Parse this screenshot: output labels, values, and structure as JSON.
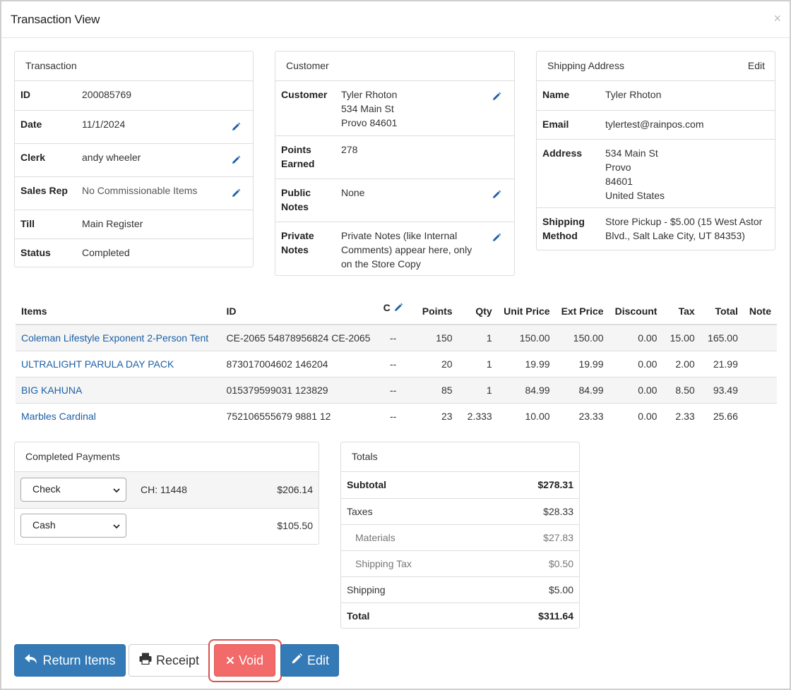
{
  "modal": {
    "title": "Transaction View",
    "close": "×"
  },
  "transaction": {
    "heading": "Transaction",
    "rows": [
      {
        "label": "ID",
        "value": "200085769"
      },
      {
        "label": "Date",
        "value": "11/1/2024"
      },
      {
        "label": "Clerk",
        "value": "andy wheeler"
      },
      {
        "label": "Sales Rep",
        "value": "No Commissionable Items"
      },
      {
        "label": "Till",
        "value": "Main Register"
      },
      {
        "label": "Status",
        "value": "Completed"
      }
    ]
  },
  "customer": {
    "heading": "Customer",
    "customer_label": "Customer",
    "customer_lines": [
      "Tyler Rhoton",
      "534 Main St",
      "Provo 84601"
    ],
    "points_label": [
      "Points",
      "Earned"
    ],
    "points_value": "278",
    "public_label": [
      "Public",
      "Notes"
    ],
    "public_value": "None",
    "private_label": [
      "Private",
      "Notes"
    ],
    "private_lines": [
      "Private Notes (like Internal",
      "Comments) appear here, only",
      "on the Store Copy"
    ]
  },
  "shipping": {
    "heading": "Shipping Address",
    "edit": "Edit",
    "name_label": "Name",
    "name_value": "Tyler Rhoton",
    "email_label": "Email",
    "email_value": "tylertest@rainpos.com",
    "address_label": "Address",
    "address_lines": [
      "534 Main St",
      "Provo",
      "84601",
      "United States"
    ],
    "method_label": [
      "Shipping",
      "Method"
    ],
    "method_lines": [
      "Store Pickup - $5.00 (15 West Astor",
      "Blvd., Salt Lake City, UT 84353)"
    ]
  },
  "items": {
    "headers": {
      "items": "Items",
      "id": "ID",
      "c": "C",
      "points": "Points",
      "qty": "Qty",
      "unit": "Unit Price",
      "ext": "Ext Price",
      "discount": "Discount",
      "tax": "Tax",
      "total": "Total",
      "note": "Note"
    },
    "rows": [
      {
        "name": "Coleman Lifestyle Exponent 2-Person Tent",
        "id": "CE-2065 54878956824 CE-2065",
        "c": "--",
        "points": "150",
        "qty": "1",
        "unit": "150.00",
        "ext": "150.00",
        "discount": "0.00",
        "tax": "15.00",
        "total": "165.00",
        "note": ""
      },
      {
        "name": "ULTRALIGHT PARULA DAY PACK",
        "id": "873017004602 146204",
        "c": "--",
        "points": "20",
        "qty": "1",
        "unit": "19.99",
        "ext": "19.99",
        "discount": "0.00",
        "tax": "2.00",
        "total": "21.99",
        "note": ""
      },
      {
        "name": "BIG KAHUNA",
        "id": "015379599031 123829",
        "c": "--",
        "points": "85",
        "qty": "1",
        "unit": "84.99",
        "ext": "84.99",
        "discount": "0.00",
        "tax": "8.50",
        "total": "93.49",
        "note": ""
      },
      {
        "name": "Marbles Cardinal",
        "id": "752106555679 9881 12",
        "c": "--",
        "points": "23",
        "qty": "2.333",
        "unit": "10.00",
        "ext": "23.33",
        "discount": "0.00",
        "tax": "2.33",
        "total": "25.66",
        "note": ""
      }
    ]
  },
  "payments": {
    "heading": "Completed Payments",
    "rows": [
      {
        "method": "Check",
        "ref": "CH: 11448",
        "amount": "$206.14"
      },
      {
        "method": "Cash",
        "ref": "",
        "amount": "$105.50"
      }
    ]
  },
  "totals": {
    "heading": "Totals",
    "rows": [
      {
        "label": "Subtotal",
        "value": "$278.31",
        "style": "bold"
      },
      {
        "label": "Taxes",
        "value": "$28.33",
        "style": ""
      },
      {
        "label": "Materials",
        "value": "$27.83",
        "style": "sub"
      },
      {
        "label": "Shipping Tax",
        "value": "$0.50",
        "style": "sub"
      },
      {
        "label": "Shipping",
        "value": "$5.00",
        "style": ""
      },
      {
        "label": "Total",
        "value": "$311.64",
        "style": "bold"
      }
    ]
  },
  "actions": {
    "return_items": "Return Items",
    "receipt": "Receipt",
    "void": "Void",
    "edit": "Edit"
  },
  "colors": {
    "primary": "#337ab7",
    "danger": "#f26a6a",
    "link": "#1c5fa5",
    "highlight": "#d9534f"
  }
}
